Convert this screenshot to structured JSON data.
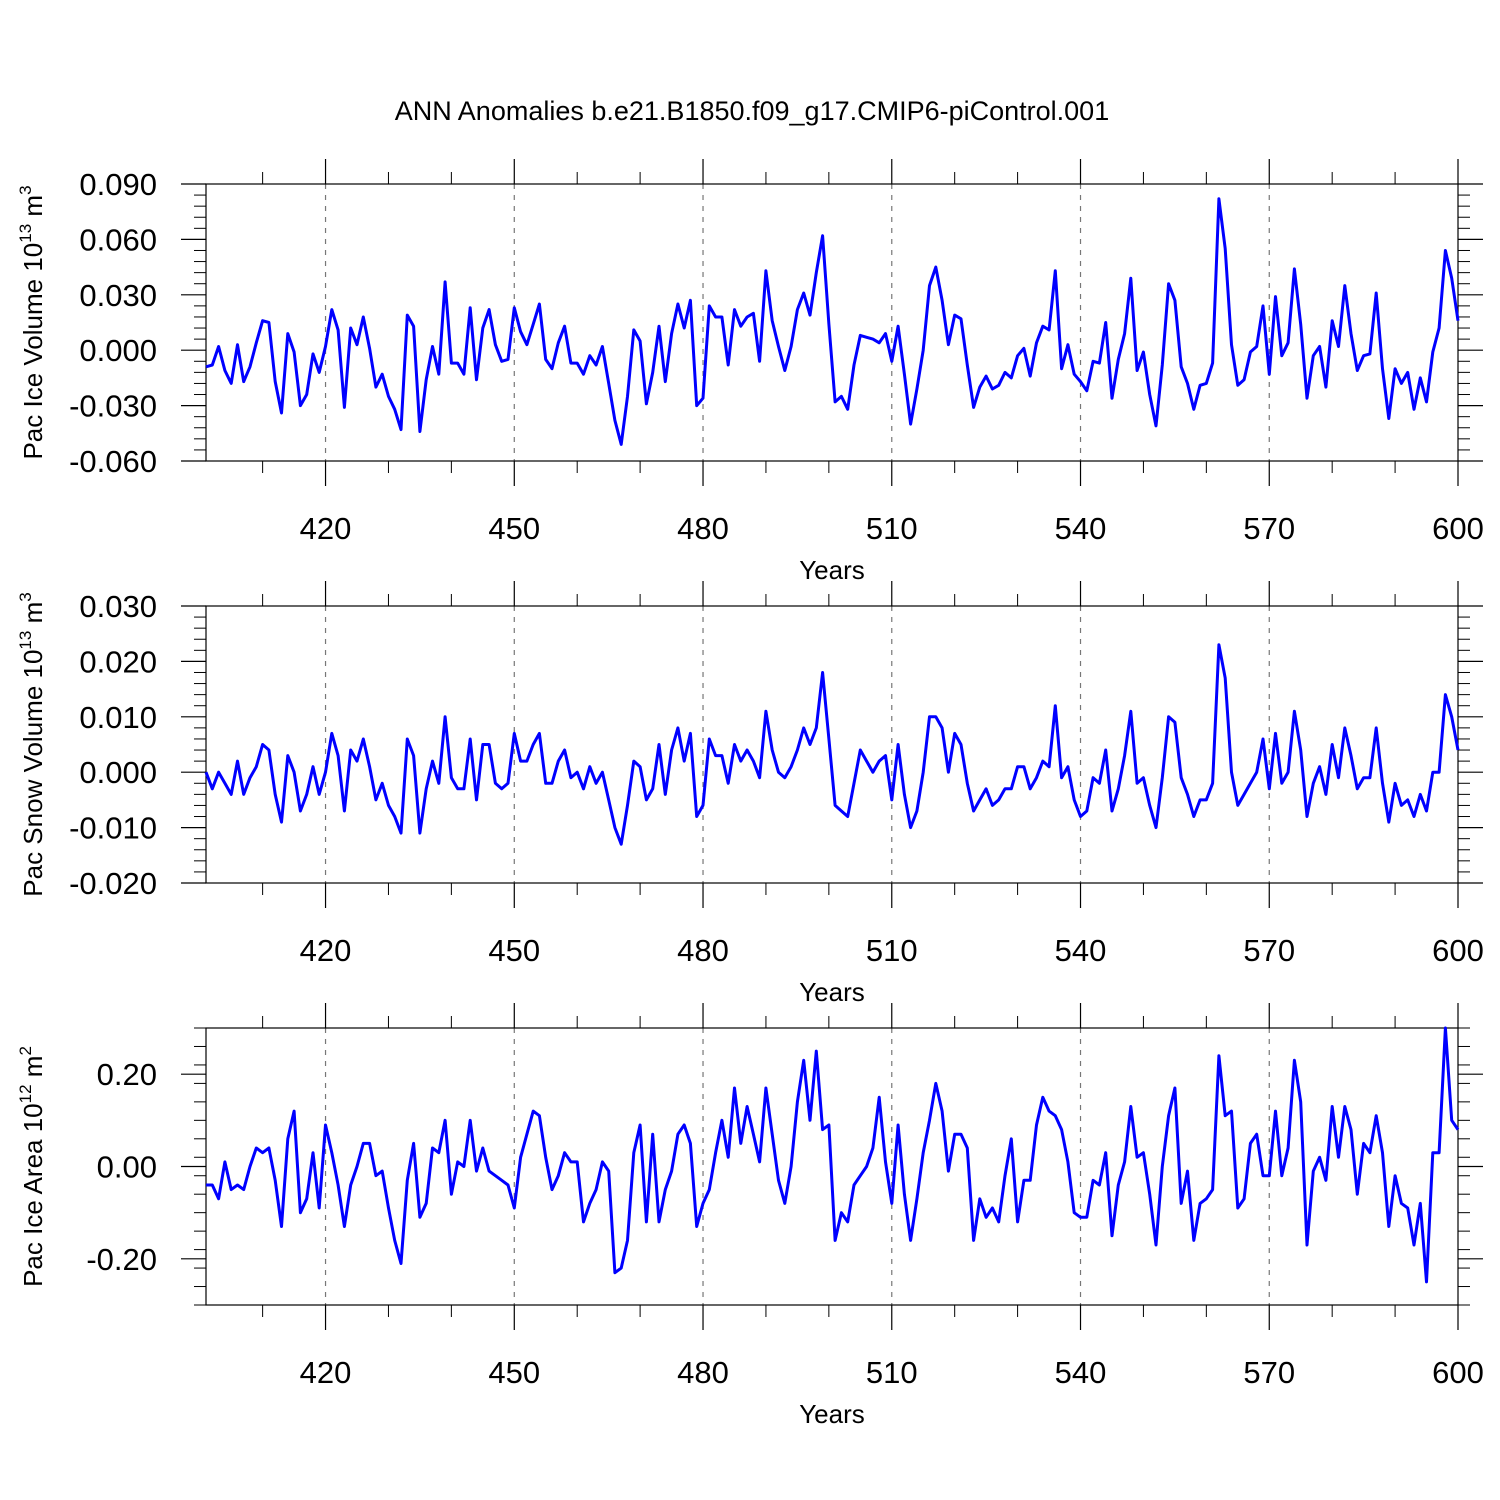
{
  "title": "ANN Anomalies b.e21.B1850.f09_g17.CMIP6-piControl.001",
  "colors": {
    "series": "#0000ff"
  },
  "chart_data": [
    {
      "type": "line",
      "xlabel": "Years",
      "ylabel": "Pac Ice Volume 10",
      "ylabel_exp": "13",
      "ylabel_unit": " m",
      "ylabel_unit_exp": "3",
      "xlim": [
        401,
        600
      ],
      "ylim": [
        -0.06,
        0.09
      ],
      "xticks": [
        420,
        450,
        480,
        510,
        540,
        570,
        600
      ],
      "yticks": [
        "0.090",
        "0.060",
        "0.030",
        "0.000",
        "-0.030",
        "-0.060"
      ],
      "ytick_values": [
        0.09,
        0.06,
        0.03,
        0.0,
        -0.03,
        -0.06
      ],
      "grid": "x dashed",
      "x_start": 401,
      "x_step": 1,
      "values": [
        -0.009,
        -0.008,
        0.002,
        -0.011,
        -0.018,
        0.003,
        -0.017,
        -0.009,
        0.004,
        0.016,
        0.015,
        -0.017,
        -0.034,
        0.009,
        -0.001,
        -0.03,
        -0.024,
        -0.002,
        -0.012,
        0.002,
        0.022,
        0.011,
        -0.031,
        0.012,
        0.003,
        0.018,
        0.001,
        -0.02,
        -0.013,
        -0.025,
        -0.032,
        -0.043,
        0.019,
        0.013,
        -0.044,
        -0.016,
        0.002,
        -0.013,
        0.037,
        -0.007,
        -0.007,
        -0.013,
        0.023,
        -0.016,
        0.012,
        0.022,
        0.003,
        -0.006,
        -0.005,
        0.023,
        0.01,
        0.003,
        0.014,
        0.025,
        -0.005,
        -0.01,
        0.004,
        0.013,
        -0.007,
        -0.007,
        -0.013,
        -0.003,
        -0.008,
        0.002,
        -0.018,
        -0.038,
        -0.051,
        -0.025,
        0.011,
        0.005,
        -0.029,
        -0.012,
        0.013,
        -0.017,
        0.009,
        0.025,
        0.012,
        0.027,
        -0.03,
        -0.026,
        0.024,
        0.018,
        0.018,
        -0.008,
        0.022,
        0.013,
        0.018,
        0.02,
        -0.006,
        0.043,
        0.016,
        0.002,
        -0.011,
        0.002,
        0.022,
        0.031,
        0.019,
        0.042,
        0.062,
        0.014,
        -0.028,
        -0.025,
        -0.032,
        -0.008,
        0.008,
        0.007,
        0.006,
        0.004,
        0.009,
        -0.006,
        0.013,
        -0.013,
        -0.04,
        -0.021,
        0.0,
        0.035,
        0.045,
        0.027,
        0.003,
        0.019,
        0.017,
        -0.008,
        -0.031,
        -0.02,
        -0.014,
        -0.021,
        -0.019,
        -0.012,
        -0.015,
        -0.003,
        0.001,
        -0.014,
        0.004,
        0.013,
        0.011,
        0.043,
        -0.01,
        0.003,
        -0.013,
        -0.017,
        -0.022,
        -0.006,
        -0.007,
        0.015,
        -0.026,
        -0.005,
        0.009,
        0.039,
        -0.011,
        -0.001,
        -0.024,
        -0.041,
        -0.008,
        0.036,
        0.027,
        -0.009,
        -0.018,
        -0.032,
        -0.019,
        -0.018,
        -0.007,
        0.082,
        0.055,
        0.003,
        -0.019,
        -0.016,
        -0.001,
        0.002,
        0.024,
        -0.013,
        0.029,
        -0.003,
        0.004,
        0.044,
        0.014,
        -0.026,
        -0.003,
        0.002,
        -0.02,
        0.016,
        0.002,
        0.035,
        0.009,
        -0.011,
        -0.003,
        -0.002,
        0.031,
        -0.01,
        -0.037,
        -0.01,
        -0.018,
        -0.012,
        -0.032,
        -0.015,
        -0.028,
        -0.001,
        0.012,
        0.054,
        0.039,
        0.016
      ]
    },
    {
      "type": "line",
      "xlabel": "Years",
      "ylabel": "Pac Snow Volume 10",
      "ylabel_exp": "13",
      "ylabel_unit": " m",
      "ylabel_unit_exp": "3",
      "xlim": [
        401,
        600
      ],
      "ylim": [
        -0.02,
        0.03
      ],
      "xticks": [
        420,
        450,
        480,
        510,
        540,
        570,
        600
      ],
      "yticks": [
        "0.030",
        "0.020",
        "0.010",
        "0.000",
        "-0.010",
        "-0.020"
      ],
      "ytick_values": [
        0.03,
        0.02,
        0.01,
        0.0,
        -0.01,
        -0.02
      ],
      "grid": "x dashed",
      "x_start": 401,
      "x_step": 1,
      "values": [
        0.0,
        -0.003,
        0.0,
        -0.002,
        -0.004,
        0.002,
        -0.004,
        -0.001,
        0.001,
        0.005,
        0.004,
        -0.004,
        -0.009,
        0.003,
        0.0,
        -0.007,
        -0.004,
        0.001,
        -0.004,
        0.0,
        0.007,
        0.003,
        -0.007,
        0.004,
        0.002,
        0.006,
        0.001,
        -0.005,
        -0.002,
        -0.006,
        -0.008,
        -0.011,
        0.006,
        0.003,
        -0.011,
        -0.003,
        0.002,
        -0.002,
        0.01,
        -0.001,
        -0.003,
        -0.003,
        0.006,
        -0.005,
        0.005,
        0.005,
        -0.002,
        -0.003,
        -0.002,
        0.007,
        0.002,
        0.002,
        0.005,
        0.007,
        -0.002,
        -0.002,
        0.002,
        0.004,
        -0.001,
        0.0,
        -0.003,
        0.001,
        -0.002,
        0.0,
        -0.005,
        -0.01,
        -0.013,
        -0.006,
        0.002,
        0.001,
        -0.005,
        -0.003,
        0.005,
        -0.004,
        0.004,
        0.008,
        0.002,
        0.007,
        -0.008,
        -0.006,
        0.006,
        0.003,
        0.003,
        -0.002,
        0.005,
        0.002,
        0.004,
        0.002,
        -0.001,
        0.011,
        0.004,
        0.0,
        -0.001,
        0.001,
        0.004,
        0.008,
        0.005,
        0.008,
        0.018,
        0.006,
        -0.006,
        -0.007,
        -0.008,
        -0.002,
        0.004,
        0.002,
        0.0,
        0.002,
        0.003,
        -0.005,
        0.005,
        -0.004,
        -0.01,
        -0.007,
        0.0,
        0.01,
        0.01,
        0.008,
        0.0,
        0.007,
        0.005,
        -0.002,
        -0.007,
        -0.005,
        -0.003,
        -0.006,
        -0.005,
        -0.003,
        -0.003,
        0.001,
        0.001,
        -0.003,
        -0.001,
        0.002,
        0.001,
        0.012,
        -0.001,
        0.001,
        -0.005,
        -0.008,
        -0.007,
        -0.001,
        -0.002,
        0.004,
        -0.007,
        -0.003,
        0.003,
        0.011,
        -0.002,
        -0.001,
        -0.006,
        -0.01,
        -0.001,
        0.01,
        0.009,
        -0.001,
        -0.004,
        -0.008,
        -0.005,
        -0.005,
        -0.002,
        0.023,
        0.017,
        0.0,
        -0.006,
        -0.004,
        -0.002,
        0.0,
        0.006,
        -0.003,
        0.007,
        -0.002,
        0.0,
        0.011,
        0.004,
        -0.008,
        -0.002,
        0.001,
        -0.004,
        0.005,
        -0.001,
        0.008,
        0.003,
        -0.003,
        -0.001,
        -0.001,
        0.008,
        -0.002,
        -0.009,
        -0.002,
        -0.006,
        -0.005,
        -0.008,
        -0.004,
        -0.007,
        0.0,
        0.0,
        0.014,
        0.01,
        0.004
      ]
    },
    {
      "type": "line",
      "xlabel": "Years",
      "ylabel": "Pac Ice Area 10",
      "ylabel_exp": "12",
      "ylabel_unit": " m",
      "ylabel_unit_exp": "2",
      "xlim": [
        401,
        600
      ],
      "ylim": [
        -0.3,
        0.3
      ],
      "xticks": [
        420,
        450,
        480,
        510,
        540,
        570,
        600
      ],
      "yticks": [
        "0.20",
        "0.00",
        "-0.20"
      ],
      "ytick_values": [
        0.2,
        0.0,
        -0.2
      ],
      "grid": "x dashed",
      "x_start": 401,
      "x_step": 1,
      "values": [
        -0.04,
        -0.04,
        -0.07,
        0.01,
        -0.05,
        -0.04,
        -0.05,
        0.0,
        0.04,
        0.03,
        0.04,
        -0.03,
        -0.13,
        0.06,
        0.12,
        -0.1,
        -0.07,
        0.03,
        -0.09,
        0.09,
        0.03,
        -0.04,
        -0.13,
        -0.04,
        0.0,
        0.05,
        0.05,
        -0.02,
        -0.01,
        -0.09,
        -0.16,
        -0.21,
        -0.03,
        0.05,
        -0.11,
        -0.08,
        0.04,
        0.03,
        0.1,
        -0.06,
        0.01,
        0.0,
        0.1,
        -0.01,
        0.04,
        -0.01,
        -0.02,
        -0.03,
        -0.04,
        -0.09,
        0.02,
        0.07,
        0.12,
        0.11,
        0.02,
        -0.05,
        -0.02,
        0.03,
        0.01,
        0.01,
        -0.12,
        -0.08,
        -0.05,
        0.01,
        -0.01,
        -0.23,
        -0.22,
        -0.16,
        0.03,
        0.09,
        -0.12,
        0.07,
        -0.12,
        -0.05,
        -0.01,
        0.07,
        0.09,
        0.05,
        -0.13,
        -0.08,
        -0.05,
        0.03,
        0.1,
        0.02,
        0.17,
        0.05,
        0.13,
        0.07,
        0.01,
        0.17,
        0.07,
        -0.03,
        -0.08,
        0.0,
        0.14,
        0.23,
        0.1,
        0.25,
        0.08,
        0.09,
        -0.16,
        -0.1,
        -0.12,
        -0.04,
        -0.02,
        0.0,
        0.04,
        0.15,
        0.01,
        -0.08,
        0.09,
        -0.06,
        -0.16,
        -0.07,
        0.03,
        0.1,
        0.18,
        0.12,
        -0.01,
        0.07,
        0.07,
        0.04,
        -0.16,
        -0.07,
        -0.11,
        -0.09,
        -0.12,
        -0.02,
        0.06,
        -0.12,
        -0.03,
        -0.03,
        0.09,
        0.15,
        0.12,
        0.11,
        0.08,
        0.01,
        -0.1,
        -0.11,
        -0.11,
        -0.03,
        -0.04,
        0.03,
        -0.15,
        -0.04,
        0.01,
        0.13,
        0.02,
        0.03,
        -0.06,
        -0.17,
        0.0,
        0.11,
        0.17,
        -0.08,
        -0.01,
        -0.16,
        -0.08,
        -0.07,
        -0.05,
        0.24,
        0.11,
        0.12,
        -0.09,
        -0.07,
        0.05,
        0.07,
        -0.02,
        -0.02,
        0.12,
        -0.02,
        0.04,
        0.23,
        0.14,
        -0.17,
        -0.01,
        0.02,
        -0.03,
        0.13,
        0.02,
        0.13,
        0.08,
        -0.06,
        0.05,
        0.03,
        0.11,
        0.03,
        -0.13,
        -0.02,
        -0.08,
        -0.09,
        -0.17,
        -0.08,
        -0.25,
        0.03,
        0.03,
        0.3,
        0.1,
        0.08
      ]
    }
  ]
}
